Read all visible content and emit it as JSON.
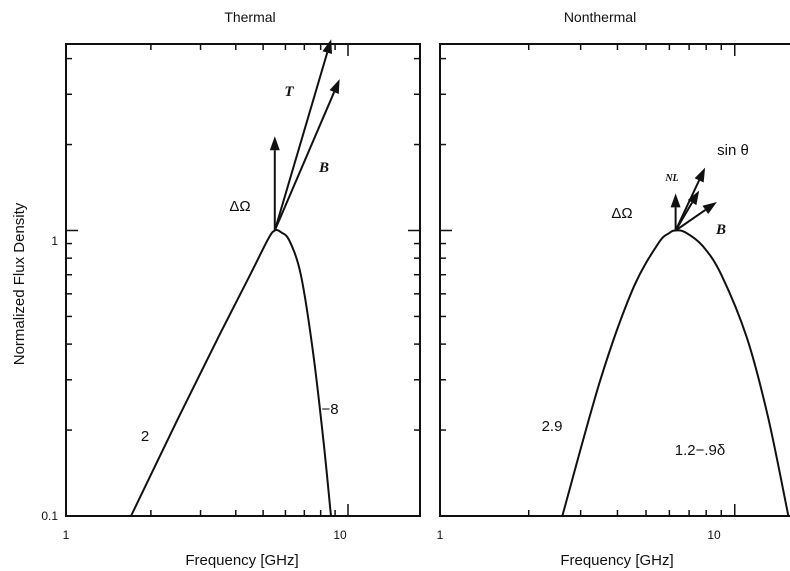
{
  "chart_data": [
    {
      "type": "line",
      "title": "Thermal",
      "xlabel": "Frequency [GHz]",
      "ylabel": "Normalized Flux Density",
      "xscale": "log",
      "yscale": "log",
      "xlim": [
        1,
        18
      ],
      "ylim": [
        0.1,
        4.5
      ],
      "xticks": [
        {
          "value": 1,
          "label": "1"
        },
        {
          "value": 10,
          "label": "10"
        }
      ],
      "yticks": [
        {
          "value": 0.1,
          "label": "0.1"
        },
        {
          "value": 1,
          "label": "1"
        }
      ],
      "series": [
        {
          "x": [
            1.7,
            2.5,
            3.5,
            4.5,
            5.2,
            5.5,
            5.8,
            6.2,
            6.8,
            7.5,
            8.2,
            8.7
          ],
          "y": [
            0.1,
            0.22,
            0.43,
            0.7,
            0.93,
            1.0,
            0.985,
            0.92,
            0.7,
            0.38,
            0.18,
            0.1
          ]
        }
      ],
      "annotations": {
        "slope_rising": "2",
        "slope_falling": "−8",
        "arrows": [
          {
            "label": "ΔΩ",
            "dx": 0.0,
            "dy": 0.33
          },
          {
            "label": "T",
            "dx": 0.2,
            "dy": 0.67
          },
          {
            "label": "B",
            "dx": 0.23,
            "dy": 0.53
          }
        ]
      }
    },
    {
      "type": "line",
      "title": "Nonthermal",
      "xlabel": "Frequency [GHz]",
      "ylabel": "",
      "xscale": "log",
      "yscale": "log",
      "xlim": [
        1,
        18
      ],
      "ylim": [
        0.1,
        4.5
      ],
      "xticks": [
        {
          "value": 1,
          "label": "1"
        },
        {
          "value": 10,
          "label": "10"
        }
      ],
      "yticks": [
        {
          "value": 0.1,
          "label": "0.1"
        },
        {
          "value": 1,
          "label": "1"
        }
      ],
      "series": [
        {
          "x": [
            2.6,
            3.5,
            4.5,
            5.5,
            6.0,
            6.3,
            6.8,
            7.8,
            9.0,
            11.0,
            13.0,
            15.2
          ],
          "y": [
            0.1,
            0.3,
            0.62,
            0.9,
            0.98,
            1.0,
            0.985,
            0.88,
            0.7,
            0.42,
            0.22,
            0.1
          ]
        }
      ],
      "annotations": {
        "slope_rising": "2.9",
        "slope_falling": "1.2−.9δ",
        "arrows": [
          {
            "label": "ΔΩ",
            "dx": 0.0,
            "dy": 0.13
          },
          {
            "label": "NL",
            "dx": 0.08,
            "dy": 0.14
          },
          {
            "label": "sin θ",
            "dx": 0.1,
            "dy": 0.22
          },
          {
            "label": "B",
            "dx": 0.14,
            "dy": 0.1
          }
        ]
      }
    }
  ]
}
